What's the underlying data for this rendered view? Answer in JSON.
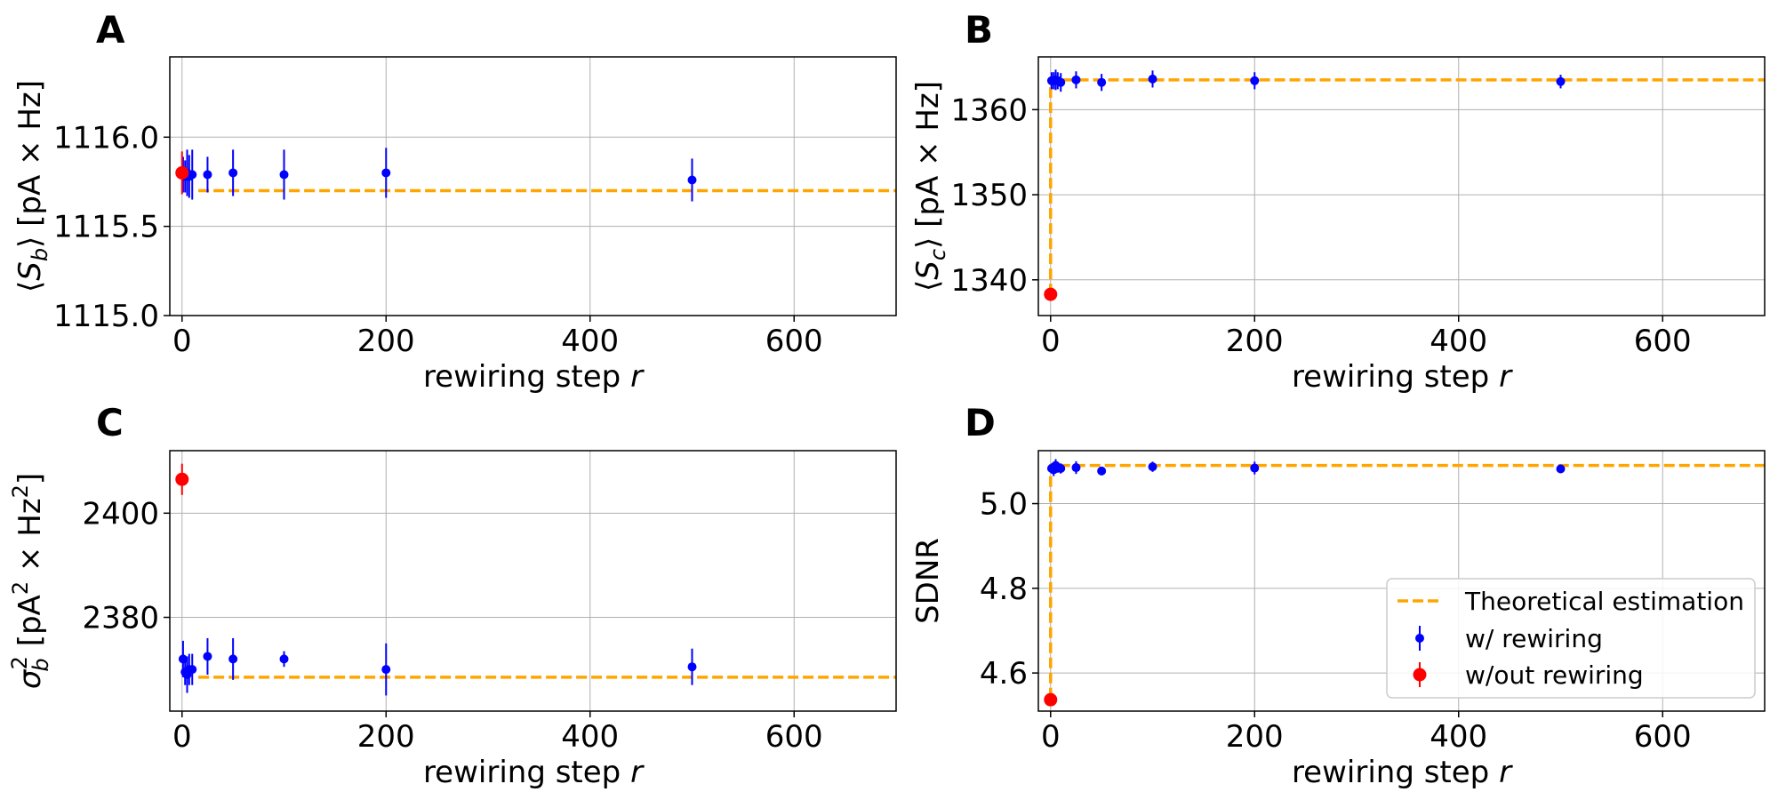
{
  "chart_data": [
    {
      "panel": "A",
      "type": "scatter",
      "xlabel": "rewiring step r",
      "ylabel": "⟨S_b⟩ [pA × Hz]",
      "xlim": [
        -12,
        700
      ],
      "ylim": [
        1115.0,
        1116.45
      ],
      "xticks": [
        0,
        200,
        400,
        600
      ],
      "yticks": [
        1115.0,
        1115.5,
        1116.0
      ],
      "ytick_labels": [
        "1115.0",
        "1115.5",
        "1116.0"
      ],
      "theory": {
        "x_start": 16,
        "y": 1115.7
      },
      "series": [
        {
          "name": "w/ rewiring",
          "color": "#0000ff",
          "x": [
            1,
            3,
            5,
            7,
            10,
            25,
            50,
            100,
            200,
            500
          ],
          "y": [
            1115.79,
            1115.78,
            1115.8,
            1115.78,
            1115.79,
            1115.79,
            1115.8,
            1115.79,
            1115.8,
            1115.76
          ],
          "err": [
            0.1,
            0.09,
            0.13,
            0.12,
            0.14,
            0.1,
            0.13,
            0.14,
            0.14,
            0.12
          ]
        },
        {
          "name": "w/out rewiring",
          "color": "#ff0000",
          "x": [
            0
          ],
          "y": [
            1115.8
          ],
          "err": [
            0.12
          ]
        }
      ]
    },
    {
      "panel": "B",
      "type": "scatter",
      "xlabel": "rewiring step r",
      "ylabel": "⟨S_c⟩ [pA × Hz]",
      "xlim": [
        -12,
        700
      ],
      "ylim": [
        1335.8,
        1366.2
      ],
      "xticks": [
        0,
        200,
        400,
        600
      ],
      "yticks": [
        1340,
        1350,
        1360
      ],
      "ytick_labels": [
        "1340",
        "1350",
        "1360"
      ],
      "theory": {
        "x_start": 0,
        "y": 1363.5,
        "y_from": 1338.3
      },
      "series": [
        {
          "name": "w/ rewiring",
          "color": "#0000ff",
          "x": [
            1,
            3,
            5,
            7,
            10,
            25,
            50,
            100,
            200,
            500
          ],
          "y": [
            1363.4,
            1363.4,
            1363.5,
            1363.4,
            1363.2,
            1363.5,
            1363.2,
            1363.6,
            1363.4,
            1363.3
          ],
          "err": [
            1.0,
            1.0,
            1.2,
            1.0,
            1.1,
            1.0,
            1.0,
            1.0,
            1.0,
            0.8
          ]
        },
        {
          "name": "w/out rewiring",
          "color": "#ff0000",
          "x": [
            0
          ],
          "y": [
            1338.3
          ],
          "err": [
            0.5
          ]
        }
      ]
    },
    {
      "panel": "C",
      "type": "scatter",
      "xlabel": "rewiring step r",
      "ylabel": "σ_b^2   [pA^2 × Hz^2]",
      "xlim": [
        -12,
        700
      ],
      "ylim": [
        2362,
        2412
      ],
      "xticks": [
        0,
        200,
        400,
        600
      ],
      "yticks": [
        2380,
        2400
      ],
      "ytick_labels": [
        "2380",
        "2400"
      ],
      "theory": {
        "x_start": 16,
        "y": 2368.5
      },
      "series": [
        {
          "name": "w/ rewiring",
          "color": "#0000ff",
          "x": [
            1,
            3,
            5,
            7,
            10,
            25,
            50,
            100,
            200,
            500
          ],
          "y": [
            2372.0,
            2369.5,
            2369.0,
            2370.0,
            2370.0,
            2372.5,
            2372.0,
            2372.0,
            2370.0,
            2370.5
          ],
          "err": [
            3.5,
            2.5,
            3.5,
            3.0,
            3.0,
            3.5,
            4.0,
            1.5,
            5.0,
            3.5
          ]
        },
        {
          "name": "w/out rewiring",
          "color": "#ff0000",
          "x": [
            0
          ],
          "y": [
            2406.5
          ],
          "err": [
            3.0
          ]
        }
      ]
    },
    {
      "panel": "D",
      "type": "scatter",
      "xlabel": "rewiring step r",
      "ylabel": "SDNR",
      "xlim": [
        -12,
        700
      ],
      "ylim": [
        4.51,
        5.125
      ],
      "xticks": [
        0,
        200,
        400,
        600
      ],
      "yticks": [
        4.6,
        4.8,
        5.0
      ],
      "ytick_labels": [
        "4.6",
        "4.8",
        "5.0"
      ],
      "theory": {
        "x_start": 0,
        "y": 5.09,
        "y_from": 4.54
      },
      "legend_position": "lower-right",
      "series": [
        {
          "name": "w/ rewiring",
          "color": "#0000ff",
          "x": [
            1,
            3,
            5,
            7,
            10,
            25,
            50,
            100,
            200,
            500
          ],
          "y": [
            5.083,
            5.08,
            5.09,
            5.085,
            5.083,
            5.085,
            5.077,
            5.087,
            5.084,
            5.082
          ],
          "err": [
            0.012,
            0.015,
            0.015,
            0.012,
            0.012,
            0.015,
            0.01,
            0.012,
            0.015,
            0.01
          ]
        },
        {
          "name": "w/out rewiring",
          "color": "#ff0000",
          "x": [
            0
          ],
          "y": [
            4.537
          ],
          "err": [
            0.008
          ]
        }
      ]
    }
  ],
  "legend": {
    "theory_label": "Theoretical estimation",
    "rewiring_label": "w/ rewiring",
    "no_rewiring_label": "w/out rewiring"
  },
  "colors": {
    "theory": "#ffa500",
    "rewiring": "#0000ff",
    "no_rewiring": "#ff0000",
    "grid": "#b0b0b0"
  }
}
